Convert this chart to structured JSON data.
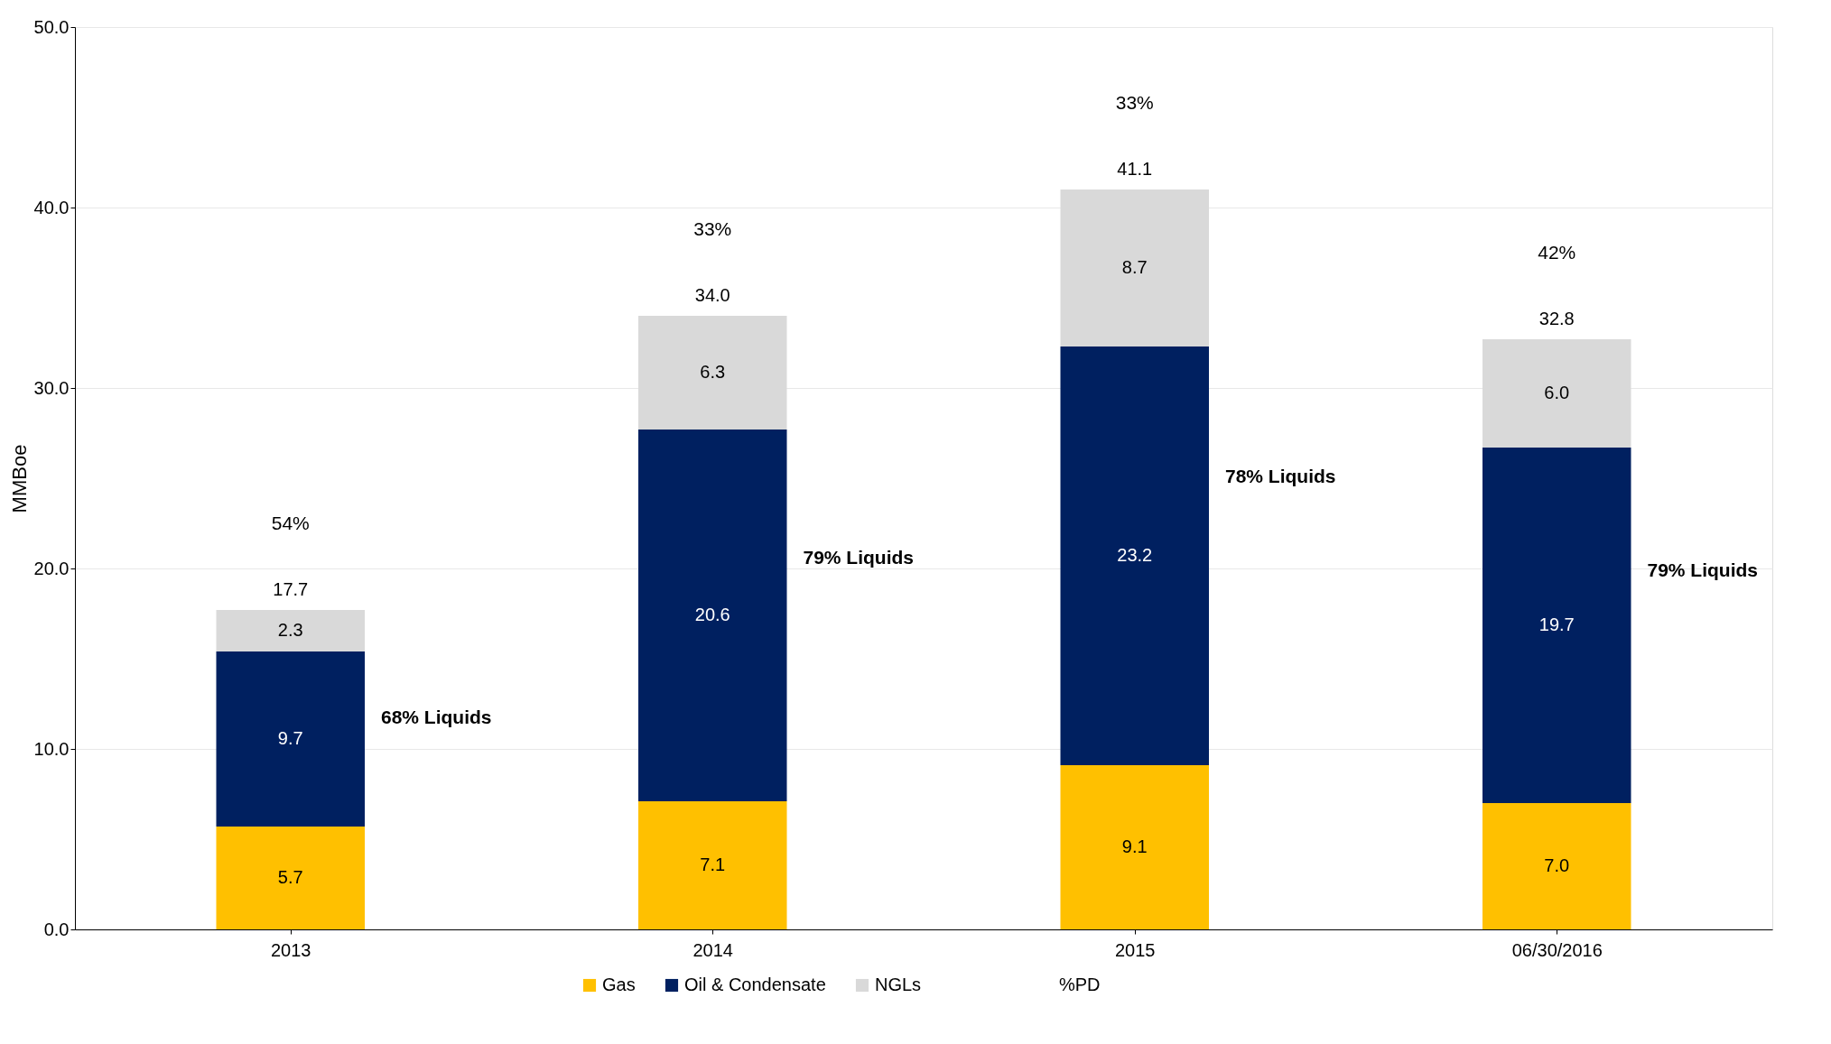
{
  "chart_data": {
    "type": "bar",
    "stacked": true,
    "ylabel": "MMBoe",
    "categories": [
      "2013",
      "2014",
      "2015",
      "06/30/2016"
    ],
    "series": [
      {
        "name": "Gas",
        "color": "#ffc000",
        "values": [
          5.7,
          7.1,
          9.1,
          7.0
        ],
        "value_labels": [
          "5.7",
          "7.1",
          "9.1",
          "7.0"
        ]
      },
      {
        "name": "Oil & Condensate",
        "color": "#002060",
        "values": [
          9.7,
          20.6,
          23.2,
          19.7
        ],
        "value_labels": [
          "9.7",
          "20.6",
          "23.2",
          "19.7"
        ]
      },
      {
        "name": "NGLs",
        "color": "#d9d9d9",
        "values": [
          2.3,
          6.3,
          8.7,
          6.0
        ],
        "value_labels": [
          "2.3",
          "6.3",
          "8.7",
          "6.0"
        ]
      }
    ],
    "totals": [
      "17.7",
      "34.0",
      "41.1",
      "32.8"
    ],
    "ylim": [
      0,
      50
    ],
    "yticks": [
      {
        "value": 0,
        "label": "0.0"
      },
      {
        "value": 10,
        "label": "10.0"
      },
      {
        "value": 20,
        "label": "20.0"
      },
      {
        "value": 30,
        "label": "30.0"
      },
      {
        "value": 40,
        "label": "40.0"
      },
      {
        "value": 50,
        "label": "50.0"
      }
    ],
    "grid": "y",
    "legend": "bottom",
    "annotations": [
      "54%",
      "33%",
      "33%",
      "42%",
      "68% Liquids",
      "79% Liquids",
      "78% Liquids",
      "79% Liquids",
      "%PD"
    ]
  }
}
